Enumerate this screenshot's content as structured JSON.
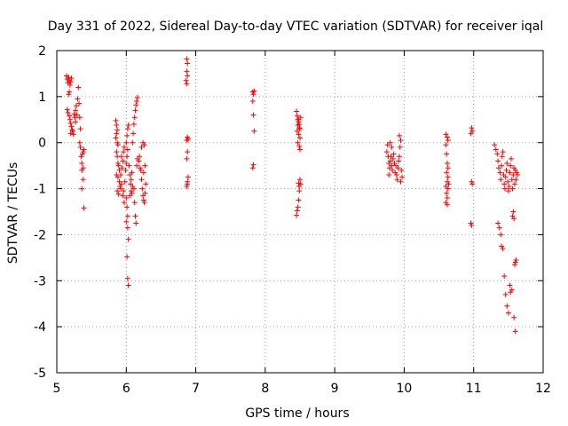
{
  "chart_data": {
    "type": "scatter",
    "title": "Day 331 of 2022, Sidereal Day-to-day VTEC variation (SDTVAR) for receiver iqal",
    "xlabel": "GPS time / hours",
    "ylabel": "SDTVAR / TECUs",
    "xlim": [
      5,
      12
    ],
    "ylim": [
      -5,
      2
    ],
    "xticks": [
      "5",
      "6",
      "7",
      "8",
      "9",
      "10",
      "11",
      "12"
    ],
    "yticks": [
      "-5",
      "-4",
      "-3",
      "-2",
      "-1",
      "0",
      "1",
      "2"
    ],
    "grid": true,
    "marker": "+",
    "marker_color": "#ff0000",
    "series": [
      {
        "name": "SDTVAR",
        "points": [
          [
            5.14,
            1.45
          ],
          [
            5.15,
            1.38
          ],
          [
            5.16,
            1.3
          ],
          [
            5.17,
            1.42
          ],
          [
            5.18,
            1.35
          ],
          [
            5.19,
            1.25
          ],
          [
            5.2,
            1.32
          ],
          [
            5.21,
            1.4
          ],
          [
            5.18,
            1.1
          ],
          [
            5.17,
            1.05
          ],
          [
            5.15,
            0.72
          ],
          [
            5.16,
            0.65
          ],
          [
            5.18,
            0.58
          ],
          [
            5.19,
            0.5
          ],
          [
            5.2,
            0.42
          ],
          [
            5.21,
            0.35
          ],
          [
            5.22,
            0.28
          ],
          [
            5.2,
            0.2
          ],
          [
            5.23,
            0.25
          ],
          [
            5.24,
            0.18
          ],
          [
            5.25,
            0.62
          ],
          [
            5.26,
            0.55
          ],
          [
            5.27,
            0.7
          ],
          [
            5.28,
            0.8
          ],
          [
            5.29,
            0.6
          ],
          [
            5.3,
            0.95
          ],
          [
            5.31,
            1.2
          ],
          [
            5.27,
            0.45
          ],
          [
            5.32,
            0.85
          ],
          [
            5.33,
            0.55
          ],
          [
            5.34,
            0.3
          ],
          [
            5.33,
            0.0
          ],
          [
            5.34,
            -0.1
          ],
          [
            5.35,
            -0.3
          ],
          [
            5.36,
            -0.45
          ],
          [
            5.37,
            -0.25
          ],
          [
            5.38,
            -0.55
          ],
          [
            5.36,
            -0.6
          ],
          [
            5.38,
            -0.2
          ],
          [
            5.39,
            -0.15
          ],
          [
            5.36,
            -1.0
          ],
          [
            5.38,
            -0.8
          ],
          [
            5.39,
            -1.42
          ],
          [
            5.85,
            0.48
          ],
          [
            5.86,
            0.38
          ],
          [
            5.87,
            0.28
          ],
          [
            5.86,
            0.2
          ],
          [
            5.85,
            0.1
          ],
          [
            5.87,
            0.0
          ],
          [
            5.88,
            -0.05
          ],
          [
            5.86,
            -0.2
          ],
          [
            5.87,
            -0.3
          ],
          [
            5.88,
            -0.45
          ],
          [
            5.89,
            -0.5
          ],
          [
            5.9,
            -0.6
          ],
          [
            5.86,
            -0.7
          ],
          [
            5.88,
            -0.75
          ],
          [
            5.9,
            -0.85
          ],
          [
            5.91,
            -0.95
          ],
          [
            5.87,
            -1.05
          ],
          [
            5.89,
            -1.12
          ],
          [
            5.92,
            -1.0
          ],
          [
            5.93,
            -0.9
          ],
          [
            5.92,
            -0.7
          ],
          [
            5.94,
            -0.55
          ],
          [
            5.95,
            -0.4
          ],
          [
            5.93,
            -0.3
          ],
          [
            5.96,
            -0.2
          ],
          [
            5.97,
            -0.1
          ],
          [
            5.95,
            -1.15
          ],
          [
            5.97,
            -1.3
          ],
          [
            5.96,
            -1.05
          ],
          [
            5.98,
            -0.85
          ],
          [
            5.99,
            -0.6
          ],
          [
            6.0,
            -0.45
          ],
          [
            6.01,
            -0.3
          ],
          [
            6.02,
            -0.15
          ],
          [
            6.0,
            0.0
          ],
          [
            6.01,
            0.15
          ],
          [
            6.02,
            0.3
          ],
          [
            6.03,
            0.38
          ],
          [
            6.0,
            -1.2
          ],
          [
            6.01,
            -1.4
          ],
          [
            6.02,
            -1.6
          ],
          [
            6.0,
            -1.72
          ],
          [
            6.02,
            -1.85
          ],
          [
            6.03,
            -2.1
          ],
          [
            6.01,
            -2.48
          ],
          [
            6.02,
            -2.95
          ],
          [
            6.03,
            -3.1
          ],
          [
            6.04,
            -0.5
          ],
          [
            6.05,
            -0.7
          ],
          [
            6.06,
            -0.9
          ],
          [
            6.07,
            -1.05
          ],
          [
            6.05,
            -1.15
          ],
          [
            6.08,
            -1.1
          ],
          [
            6.09,
            -0.95
          ],
          [
            6.07,
            -0.8
          ],
          [
            6.08,
            -0.65
          ],
          [
            6.09,
            0.0
          ],
          [
            6.1,
            0.2
          ],
          [
            6.11,
            0.4
          ],
          [
            6.12,
            0.55
          ],
          [
            6.13,
            0.7
          ],
          [
            6.14,
            0.82
          ],
          [
            6.15,
            0.9
          ],
          [
            6.16,
            0.98
          ],
          [
            6.11,
            -1.0
          ],
          [
            6.12,
            -1.3
          ],
          [
            6.13,
            -1.6
          ],
          [
            6.14,
            -1.75
          ],
          [
            6.15,
            -0.5
          ],
          [
            6.16,
            -0.35
          ],
          [
            6.18,
            -0.4
          ],
          [
            6.19,
            -0.3
          ],
          [
            6.2,
            -0.55
          ],
          [
            6.21,
            -0.6
          ],
          [
            6.22,
            -0.8
          ],
          [
            6.23,
            -1.0
          ],
          [
            6.24,
            -1.15
          ],
          [
            6.25,
            -1.25
          ],
          [
            6.26,
            -1.3
          ],
          [
            6.27,
            -1.1
          ],
          [
            6.28,
            -0.9
          ],
          [
            6.25,
            -0.65
          ],
          [
            6.27,
            -0.5
          ],
          [
            6.22,
            -0.1
          ],
          [
            6.24,
            0.0
          ],
          [
            6.26,
            -0.05
          ],
          [
            6.87,
            1.82
          ],
          [
            6.88,
            1.72
          ],
          [
            6.87,
            1.55
          ],
          [
            6.88,
            1.45
          ],
          [
            6.86,
            1.35
          ],
          [
            6.87,
            1.28
          ],
          [
            6.88,
            0.12
          ],
          [
            6.87,
            0.05
          ],
          [
            6.89,
            0.08
          ],
          [
            6.88,
            -0.2
          ],
          [
            6.87,
            -0.35
          ],
          [
            6.89,
            -0.75
          ],
          [
            6.88,
            -0.85
          ],
          [
            6.87,
            -0.95
          ],
          [
            6.88,
            -0.9
          ],
          [
            7.82,
            1.1
          ],
          [
            7.83,
            1.05
          ],
          [
            7.84,
            1.12
          ],
          [
            7.82,
            0.9
          ],
          [
            7.83,
            0.6
          ],
          [
            7.84,
            0.25
          ],
          [
            7.83,
            -0.48
          ],
          [
            7.82,
            -0.55
          ],
          [
            8.45,
            0.68
          ],
          [
            8.46,
            0.58
          ],
          [
            8.47,
            0.5
          ],
          [
            8.48,
            0.45
          ],
          [
            8.47,
            0.38
          ],
          [
            8.49,
            0.32
          ],
          [
            8.46,
            0.25
          ],
          [
            8.48,
            0.18
          ],
          [
            8.5,
            0.1
          ],
          [
            8.47,
            0.0
          ],
          [
            8.49,
            -0.08
          ],
          [
            8.5,
            -0.15
          ],
          [
            8.48,
            0.5
          ],
          [
            8.51,
            0.55
          ],
          [
            8.49,
            0.4
          ],
          [
            8.5,
            0.3
          ],
          [
            8.48,
            -0.88
          ],
          [
            8.49,
            -0.95
          ],
          [
            8.5,
            -0.8
          ],
          [
            8.51,
            -0.9
          ],
          [
            8.49,
            -1.05
          ],
          [
            8.48,
            -1.25
          ],
          [
            8.47,
            -1.4
          ],
          [
            8.46,
            -1.48
          ],
          [
            8.45,
            -1.58
          ],
          [
            9.75,
            -0.2
          ],
          [
            9.77,
            -0.3
          ],
          [
            9.78,
            -0.45
          ],
          [
            9.79,
            -0.55
          ],
          [
            9.8,
            -0.4
          ],
          [
            9.81,
            -0.3
          ],
          [
            9.82,
            -0.5
          ],
          [
            9.83,
            -0.6
          ],
          [
            9.84,
            -0.35
          ],
          [
            9.85,
            -0.25
          ],
          [
            9.86,
            -0.45
          ],
          [
            9.87,
            -0.65
          ],
          [
            9.88,
            -0.5
          ],
          [
            9.89,
            -0.7
          ],
          [
            9.9,
            -0.8
          ],
          [
            9.91,
            -0.55
          ],
          [
            9.92,
            -0.4
          ],
          [
            9.93,
            -0.3
          ],
          [
            9.94,
            -0.1
          ],
          [
            9.95,
            0.05
          ],
          [
            9.93,
            0.15
          ],
          [
            9.96,
            -0.6
          ],
          [
            9.97,
            -0.75
          ],
          [
            9.95,
            -0.85
          ],
          [
            9.78,
            -0.7
          ],
          [
            9.8,
            0.0
          ],
          [
            9.82,
            -0.1
          ],
          [
            9.76,
            -0.05
          ],
          [
            10.6,
            0.18
          ],
          [
            10.62,
            0.12
          ],
          [
            10.63,
            0.05
          ],
          [
            10.6,
            -0.05
          ],
          [
            10.61,
            -0.25
          ],
          [
            10.62,
            -0.45
          ],
          [
            10.63,
            -0.55
          ],
          [
            10.61,
            -0.65
          ],
          [
            10.62,
            -0.85
          ],
          [
            10.6,
            -0.95
          ],
          [
            10.63,
            -1.0
          ],
          [
            10.61,
            -1.1
          ],
          [
            10.62,
            -1.2
          ],
          [
            10.6,
            -1.3
          ],
          [
            10.63,
            -0.75
          ],
          [
            10.64,
            -0.9
          ],
          [
            10.62,
            -1.35
          ],
          [
            10.97,
            0.32
          ],
          [
            10.98,
            0.25
          ],
          [
            10.96,
            0.2
          ],
          [
            10.97,
            -0.85
          ],
          [
            10.98,
            -0.9
          ],
          [
            10.96,
            -1.75
          ],
          [
            10.97,
            -1.8
          ],
          [
            11.3,
            -0.05
          ],
          [
            11.32,
            -0.15
          ],
          [
            11.34,
            -0.25
          ],
          [
            11.35,
            -0.4
          ],
          [
            11.36,
            -0.55
          ],
          [
            11.38,
            -0.65
          ],
          [
            11.39,
            -0.8
          ],
          [
            11.4,
            -0.5
          ],
          [
            11.41,
            -0.3
          ],
          [
            11.42,
            -0.2
          ],
          [
            11.43,
            -0.7
          ],
          [
            11.44,
            -0.9
          ],
          [
            11.45,
            -1.0
          ],
          [
            11.46,
            -0.75
          ],
          [
            11.47,
            -0.6
          ],
          [
            11.48,
            -0.45
          ],
          [
            11.49,
            -0.85
          ],
          [
            11.5,
            -1.05
          ],
          [
            11.51,
            -0.95
          ],
          [
            11.52,
            -0.65
          ],
          [
            11.53,
            -0.5
          ],
          [
            11.54,
            -0.35
          ],
          [
            11.55,
            -0.8
          ],
          [
            11.56,
            -1.0
          ],
          [
            11.57,
            -0.7
          ],
          [
            11.58,
            -0.55
          ],
          [
            11.59,
            -0.9
          ],
          [
            11.6,
            -0.6
          ],
          [
            11.61,
            -0.8
          ],
          [
            11.62,
            -0.65
          ],
          [
            11.63,
            -0.7
          ],
          [
            11.35,
            -1.75
          ],
          [
            11.37,
            -1.85
          ],
          [
            11.39,
            -2.0
          ],
          [
            11.4,
            -2.25
          ],
          [
            11.42,
            -2.3
          ],
          [
            11.44,
            -2.9
          ],
          [
            11.46,
            -3.3
          ],
          [
            11.48,
            -3.55
          ],
          [
            11.5,
            -3.7
          ],
          [
            11.52,
            -3.1
          ],
          [
            11.53,
            -3.25
          ],
          [
            11.55,
            -3.2
          ],
          [
            11.56,
            -1.6
          ],
          [
            11.57,
            -1.5
          ],
          [
            11.58,
            -1.65
          ],
          [
            11.59,
            -2.65
          ],
          [
            11.6,
            -2.6
          ],
          [
            11.61,
            -2.55
          ],
          [
            11.58,
            -3.8
          ],
          [
            11.6,
            -4.1
          ]
        ]
      }
    ]
  }
}
